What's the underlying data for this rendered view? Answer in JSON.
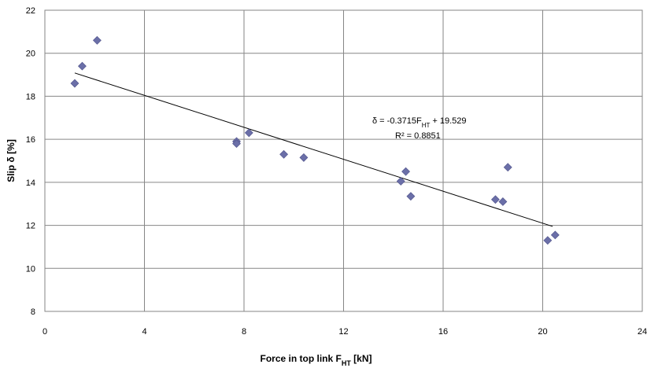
{
  "chart_data": {
    "type": "scatter",
    "title": "",
    "xlabel": "Force in top link F",
    "xlabel_subscript": "HT",
    "xlabel_unit": " [kN]",
    "ylabel": "Slip δ [%]",
    "xlim": [
      0,
      24
    ],
    "ylim": [
      8,
      22
    ],
    "xticks": [
      0,
      4,
      8,
      12,
      16,
      20,
      24
    ],
    "yticks": [
      8,
      10,
      12,
      14,
      16,
      18,
      20,
      22
    ],
    "grid": true,
    "marker": "diamond",
    "marker_color": "#6b6fa8",
    "series": [
      {
        "points": [
          {
            "x": 1.2,
            "y": 18.6
          },
          {
            "x": 1.5,
            "y": 19.4
          },
          {
            "x": 2.1,
            "y": 20.6
          },
          {
            "x": 7.7,
            "y": 15.9
          },
          {
            "x": 7.7,
            "y": 15.8
          },
          {
            "x": 8.2,
            "y": 16.3
          },
          {
            "x": 9.6,
            "y": 15.3
          },
          {
            "x": 10.4,
            "y": 15.15
          },
          {
            "x": 14.3,
            "y": 14.05
          },
          {
            "x": 14.5,
            "y": 14.5
          },
          {
            "x": 14.7,
            "y": 13.35
          },
          {
            "x": 18.1,
            "y": 13.2
          },
          {
            "x": 18.4,
            "y": 13.1
          },
          {
            "x": 18.6,
            "y": 14.7
          },
          {
            "x": 20.2,
            "y": 11.3
          },
          {
            "x": 20.5,
            "y": 11.55
          }
        ]
      }
    ],
    "trendline": {
      "slope": -0.3715,
      "intercept": 19.529,
      "x_start": 1.2,
      "x_end": 20.4,
      "equation_prefix": "δ = -0.3715F",
      "equation_subscript": "HT",
      "equation_suffix": " + 19.529",
      "r_squared": "R² = 0.8851"
    }
  }
}
